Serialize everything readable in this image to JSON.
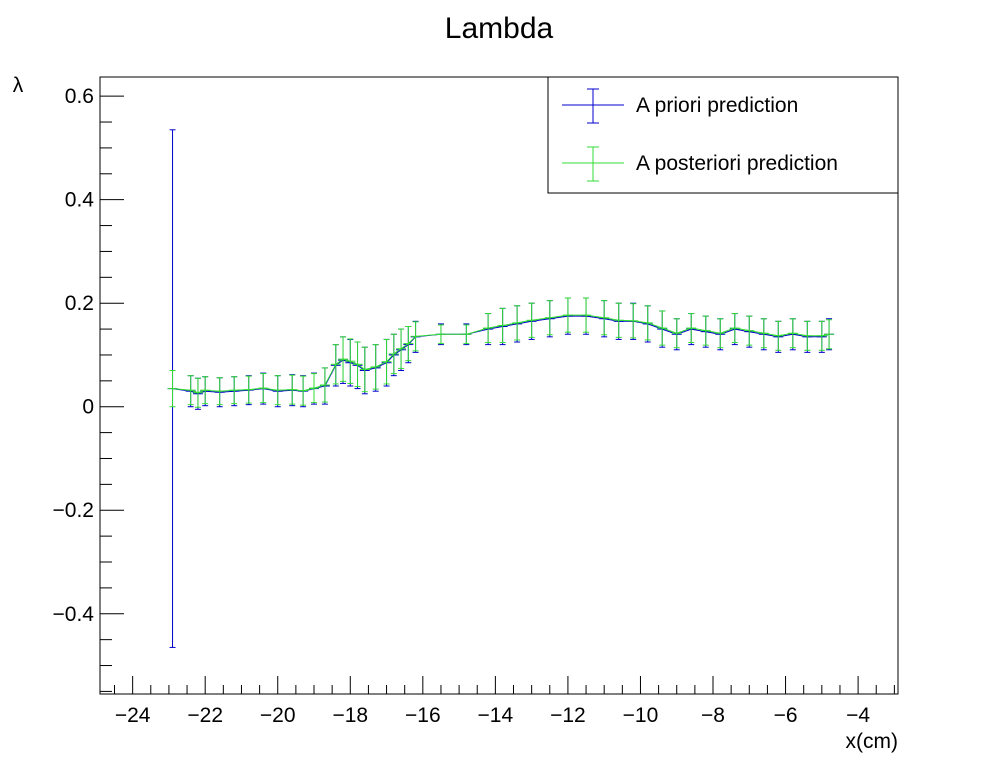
{
  "chart_data": {
    "type": "scatter",
    "title": "Lambda",
    "xlabel": "x(cm)",
    "ylabel": "λ",
    "xlim": [
      -24.9,
      -2.9
    ],
    "ylim": [
      -0.555,
      0.637
    ],
    "x_ticks": [
      -24,
      -22,
      -20,
      -18,
      -16,
      -14,
      -12,
      -10,
      -8,
      -6,
      -4
    ],
    "x_tick_labels": [
      "−24",
      "−22",
      "−20",
      "−18",
      "−16",
      "−14",
      "−12",
      "−10",
      "−8",
      "−6",
      "−4"
    ],
    "y_ticks": [
      -0.4,
      -0.2,
      0,
      0.2,
      0.4,
      0.6
    ],
    "y_tick_labels": [
      "−0.4",
      "−0.2",
      "0",
      "0.2",
      "0.4",
      "0.6"
    ],
    "grid": false,
    "legend_position": "top-right",
    "series": [
      {
        "name": "A priori prediction",
        "color": "#0000cc",
        "x": [
          -22.9,
          -22.4,
          -22.2,
          -22.0,
          -21.6,
          -21.2,
          -20.8,
          -20.4,
          -20.0,
          -19.6,
          -19.3,
          -19.0,
          -18.7,
          -18.4,
          -18.2,
          -18.0,
          -17.8,
          -17.6,
          -17.3,
          -17.0,
          -16.8,
          -16.6,
          -16.4,
          -16.2,
          -15.5,
          -14.8,
          -14.2,
          -13.8,
          -13.4,
          -13.0,
          -12.5,
          -12.0,
          -11.5,
          -11.0,
          -10.6,
          -10.2,
          -9.8,
          -9.4,
          -9.0,
          -8.6,
          -8.2,
          -7.8,
          -7.4,
          -7.0,
          -6.6,
          -6.2,
          -5.8,
          -5.4,
          -5.0,
          -4.8
        ],
        "y": [
          0.035,
          0.03,
          0.025,
          0.03,
          0.028,
          0.03,
          0.032,
          0.035,
          0.03,
          0.032,
          0.03,
          0.035,
          0.04,
          0.08,
          0.09,
          0.085,
          0.08,
          0.07,
          0.075,
          0.085,
          0.1,
          0.11,
          0.12,
          0.135,
          0.14,
          0.14,
          0.15,
          0.155,
          0.16,
          0.165,
          0.17,
          0.175,
          0.175,
          0.17,
          0.165,
          0.165,
          0.16,
          0.15,
          0.14,
          0.15,
          0.145,
          0.14,
          0.15,
          0.145,
          0.14,
          0.135,
          0.14,
          0.135,
          0.135,
          0.14
        ],
        "err": [
          0.5,
          0.03,
          0.03,
          0.028,
          0.028,
          0.028,
          0.028,
          0.03,
          0.03,
          0.03,
          0.03,
          0.03,
          0.035,
          0.04,
          0.045,
          0.045,
          0.045,
          0.045,
          0.045,
          0.045,
          0.04,
          0.04,
          0.035,
          0.03,
          0.02,
          0.02,
          0.03,
          0.035,
          0.035,
          0.035,
          0.035,
          0.035,
          0.035,
          0.035,
          0.035,
          0.035,
          0.035,
          0.035,
          0.03,
          0.03,
          0.03,
          0.03,
          0.03,
          0.03,
          0.03,
          0.03,
          0.03,
          0.03,
          0.03,
          0.03
        ]
      },
      {
        "name": "A posteriori prediction",
        "color": "#33dd33",
        "x": [
          -22.9,
          -22.4,
          -22.2,
          -22.0,
          -21.6,
          -21.2,
          -20.8,
          -20.4,
          -20.0,
          -19.6,
          -19.3,
          -19.0,
          -18.7,
          -18.4,
          -18.2,
          -18.0,
          -17.8,
          -17.6,
          -17.3,
          -17.0,
          -16.8,
          -16.6,
          -16.4,
          -16.2,
          -15.5,
          -14.8,
          -14.2,
          -13.8,
          -13.4,
          -13.0,
          -12.5,
          -12.0,
          -11.5,
          -11.0,
          -10.6,
          -10.2,
          -9.8,
          -9.4,
          -9.0,
          -8.6,
          -8.2,
          -7.8,
          -7.4,
          -7.0,
          -6.6,
          -6.2,
          -5.8,
          -5.4,
          -5.0,
          -4.8
        ],
        "y": [
          0.035,
          0.032,
          0.027,
          0.032,
          0.03,
          0.032,
          0.033,
          0.036,
          0.032,
          0.033,
          0.031,
          0.036,
          0.042,
          0.082,
          0.092,
          0.088,
          0.082,
          0.072,
          0.077,
          0.087,
          0.102,
          0.112,
          0.122,
          0.136,
          0.14,
          0.14,
          0.152,
          0.157,
          0.162,
          0.167,
          0.172,
          0.177,
          0.177,
          0.172,
          0.167,
          0.166,
          0.162,
          0.152,
          0.142,
          0.152,
          0.147,
          0.142,
          0.152,
          0.147,
          0.142,
          0.137,
          0.142,
          0.137,
          0.137,
          0.14
        ],
        "err": [
          0.035,
          0.028,
          0.028,
          0.026,
          0.026,
          0.026,
          0.026,
          0.028,
          0.028,
          0.028,
          0.028,
          0.028,
          0.033,
          0.038,
          0.043,
          0.043,
          0.043,
          0.043,
          0.043,
          0.043,
          0.038,
          0.038,
          0.033,
          0.028,
          0.018,
          0.018,
          0.028,
          0.033,
          0.033,
          0.033,
          0.033,
          0.033,
          0.033,
          0.033,
          0.033,
          0.033,
          0.033,
          0.033,
          0.028,
          0.028,
          0.028,
          0.028,
          0.028,
          0.028,
          0.028,
          0.028,
          0.028,
          0.028,
          0.028,
          0.028
        ]
      }
    ]
  }
}
